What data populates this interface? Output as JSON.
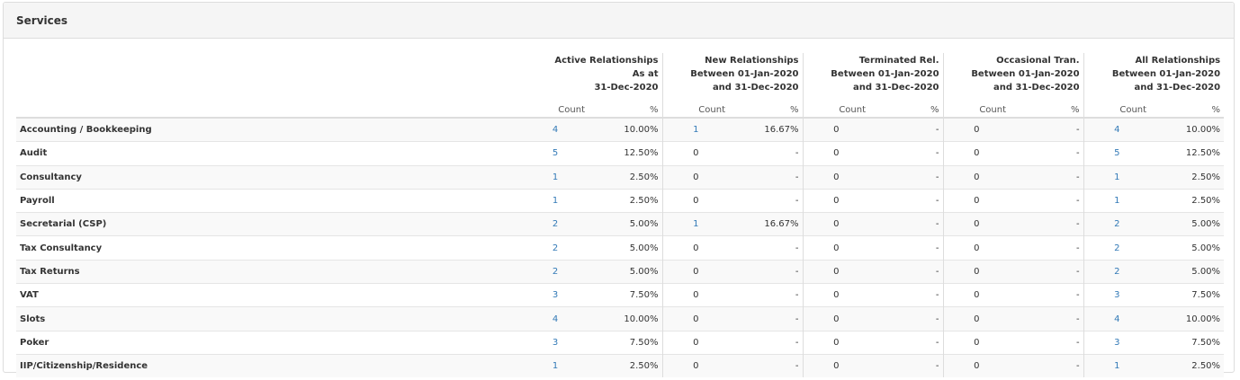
{
  "panel": {
    "title": "Services"
  },
  "groups": [
    {
      "lines": [
        "Active Relationships",
        "As at",
        "31-Dec-2020"
      ],
      "count_label": "Count",
      "pct_label": "%"
    },
    {
      "lines": [
        "New Relationships",
        "Between 01-Jan-2020",
        "and 31-Dec-2020"
      ],
      "count_label": "Count",
      "pct_label": "%"
    },
    {
      "lines": [
        "Terminated Rel.",
        "Between 01-Jan-2020",
        "and 31-Dec-2020"
      ],
      "count_label": "Count",
      "pct_label": "%"
    },
    {
      "lines": [
        "Occasional Tran.",
        "Between 01-Jan-2020",
        "and 31-Dec-2020"
      ],
      "count_label": "Count",
      "pct_label": "%"
    },
    {
      "lines": [
        "All Relationships",
        "Between 01-Jan-2020",
        "and 31-Dec-2020"
      ],
      "count_label": "Count",
      "pct_label": "%"
    }
  ],
  "rows": [
    {
      "name": "Accounting / Bookkeeping",
      "cells": [
        [
          "4",
          "10.00%"
        ],
        [
          "1",
          "16.67%"
        ],
        [
          "0",
          "-"
        ],
        [
          "0",
          "-"
        ],
        [
          "4",
          "10.00%"
        ]
      ]
    },
    {
      "name": "Audit",
      "cells": [
        [
          "5",
          "12.50%"
        ],
        [
          "0",
          "-"
        ],
        [
          "0",
          "-"
        ],
        [
          "0",
          "-"
        ],
        [
          "5",
          "12.50%"
        ]
      ]
    },
    {
      "name": "Consultancy",
      "cells": [
        [
          "1",
          "2.50%"
        ],
        [
          "0",
          "-"
        ],
        [
          "0",
          "-"
        ],
        [
          "0",
          "-"
        ],
        [
          "1",
          "2.50%"
        ]
      ]
    },
    {
      "name": "Payroll",
      "cells": [
        [
          "1",
          "2.50%"
        ],
        [
          "0",
          "-"
        ],
        [
          "0",
          "-"
        ],
        [
          "0",
          "-"
        ],
        [
          "1",
          "2.50%"
        ]
      ]
    },
    {
      "name": "Secretarial (CSP)",
      "cells": [
        [
          "2",
          "5.00%"
        ],
        [
          "1",
          "16.67%"
        ],
        [
          "0",
          "-"
        ],
        [
          "0",
          "-"
        ],
        [
          "2",
          "5.00%"
        ]
      ]
    },
    {
      "name": "Tax Consultancy",
      "cells": [
        [
          "2",
          "5.00%"
        ],
        [
          "0",
          "-"
        ],
        [
          "0",
          "-"
        ],
        [
          "0",
          "-"
        ],
        [
          "2",
          "5.00%"
        ]
      ]
    },
    {
      "name": "Tax Returns",
      "cells": [
        [
          "2",
          "5.00%"
        ],
        [
          "0",
          "-"
        ],
        [
          "0",
          "-"
        ],
        [
          "0",
          "-"
        ],
        [
          "2",
          "5.00%"
        ]
      ]
    },
    {
      "name": "VAT",
      "cells": [
        [
          "3",
          "7.50%"
        ],
        [
          "0",
          "-"
        ],
        [
          "0",
          "-"
        ],
        [
          "0",
          "-"
        ],
        [
          "3",
          "7.50%"
        ]
      ]
    },
    {
      "name": "Slots",
      "cells": [
        [
          "4",
          "10.00%"
        ],
        [
          "0",
          "-"
        ],
        [
          "0",
          "-"
        ],
        [
          "0",
          "-"
        ],
        [
          "4",
          "10.00%"
        ]
      ]
    },
    {
      "name": "Poker",
      "cells": [
        [
          "3",
          "7.50%"
        ],
        [
          "0",
          "-"
        ],
        [
          "0",
          "-"
        ],
        [
          "0",
          "-"
        ],
        [
          "3",
          "7.50%"
        ]
      ]
    },
    {
      "name": "IIP/Citizenship/Residence",
      "cells": [
        [
          "1",
          "2.50%"
        ],
        [
          "0",
          "-"
        ],
        [
          "0",
          "-"
        ],
        [
          "0",
          "-"
        ],
        [
          "1",
          "2.50%"
        ]
      ]
    }
  ],
  "colors": {
    "link": "#337ab7",
    "text": "#333333",
    "header_bg": "#f5f5f5",
    "border": "#dddddd"
  }
}
